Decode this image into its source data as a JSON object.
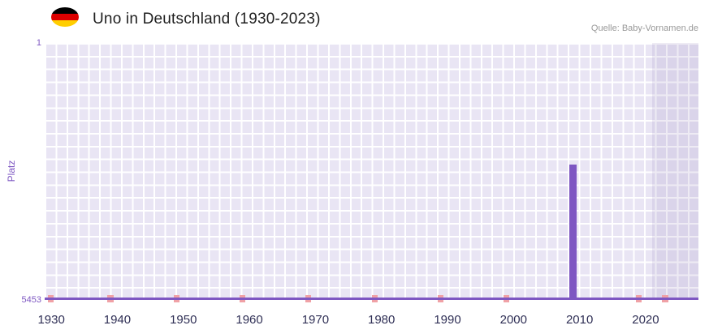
{
  "header": {
    "title": "Uno in Deutschland (1930-2023)",
    "source": "Quelle: Baby-Vornamen.de"
  },
  "flag": {
    "country": "Deutschland",
    "stripe_colors": [
      "#000000",
      "#dd0000",
      "#ffce00"
    ]
  },
  "chart_data": {
    "type": "bar",
    "title": "Uno in Deutschland (1930-2023)",
    "xlabel": "",
    "ylabel": "Platz",
    "y_axis": {
      "min": 1,
      "max": 5453,
      "inverted": true,
      "top_label": "1",
      "bottom_label": "5453"
    },
    "x_ticks": [
      "1930",
      "1940",
      "1950",
      "1960",
      "1970",
      "1980",
      "1990",
      "2000",
      "2010",
      "2020"
    ],
    "x_range": [
      1929,
      2028
    ],
    "bars": [
      {
        "year": 2009,
        "rank": 2580
      }
    ],
    "baseline_marker_years": [
      1930,
      1939,
      1949,
      1959,
      1969,
      1979,
      1989,
      1999,
      2019,
      2023
    ],
    "baseline_marker_meaning": "rank near bottom of scale",
    "shaded_region": {
      "from": 2021,
      "to": 2028
    },
    "grid": true,
    "legend": "none",
    "colors": {
      "bar": "#7e57c2",
      "baseline": "#7e57c2",
      "marker": "#f0a1a6",
      "plot_background": "#e9e5f4",
      "shaded_overlay": "rgba(120,100,170,0.13)",
      "grid_lines": "#ffffff",
      "y_axis_text": "#7e57c2",
      "x_axis_text": "#2f2f55",
      "title_text": "#1e1e1e",
      "source_text": "#999999"
    }
  }
}
